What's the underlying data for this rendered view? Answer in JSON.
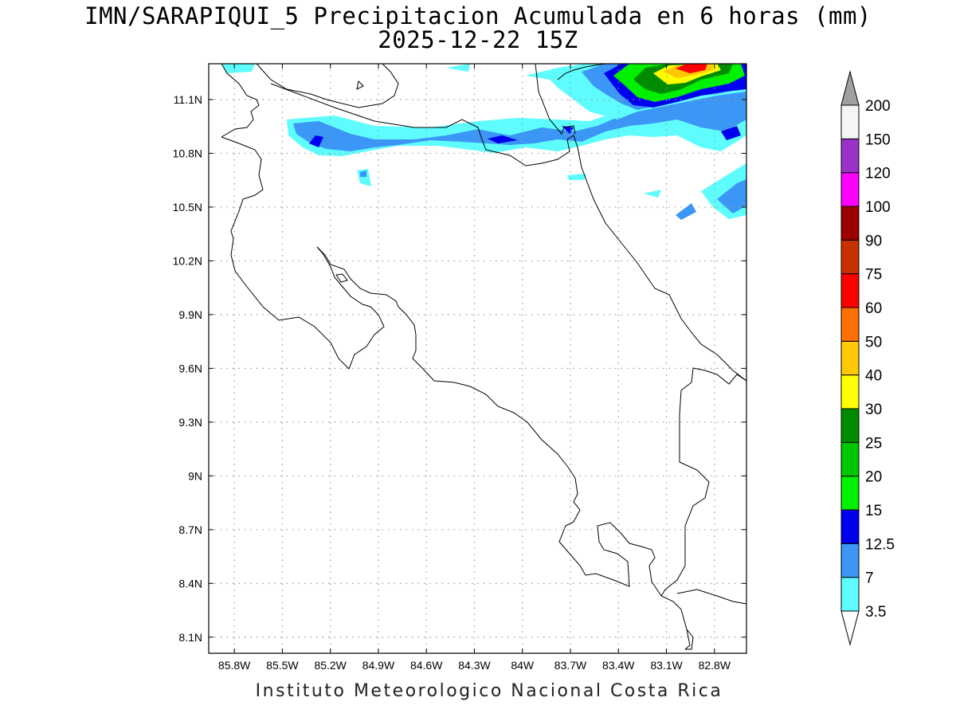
{
  "title": {
    "line1": "IMN/SARAPIQUI_5 Precipitacion Acumulada en 6 horas (mm)",
    "line2": "2025-12-22 15Z"
  },
  "footer": "Instituto Meteorologico Nacional Costa Rica",
  "map": {
    "lat_ticks": [
      {
        "value": 11.1,
        "label": "11.1N"
      },
      {
        "value": 10.8,
        "label": "10.8N"
      },
      {
        "value": 10.5,
        "label": "10.5N"
      },
      {
        "value": 10.2,
        "label": "10.2N"
      },
      {
        "value": 9.9,
        "label": "9.9N"
      },
      {
        "value": 9.6,
        "label": "9.6N"
      },
      {
        "value": 9.3,
        "label": "9.3N"
      },
      {
        "value": 9.0,
        "label": "9N"
      },
      {
        "value": 8.7,
        "label": "8.7N"
      },
      {
        "value": 8.4,
        "label": "8.4N"
      },
      {
        "value": 8.1,
        "label": "8.1N"
      }
    ],
    "lon_ticks": [
      {
        "value": -85.8,
        "label": "85.8W"
      },
      {
        "value": -85.5,
        "label": "85.5W"
      },
      {
        "value": -85.2,
        "label": "85.2W"
      },
      {
        "value": -84.9,
        "label": "84.9W"
      },
      {
        "value": -84.6,
        "label": "84.6W"
      },
      {
        "value": -84.3,
        "label": "84.3W"
      },
      {
        "value": -84.0,
        "label": "84W"
      },
      {
        "value": -83.7,
        "label": "83.7W"
      },
      {
        "value": -83.4,
        "label": "83.4W"
      },
      {
        "value": -83.1,
        "label": "83.1W"
      },
      {
        "value": -82.8,
        "label": "82.8W"
      }
    ],
    "extent": {
      "lon_min": -85.96,
      "lon_max": -82.6,
      "lat_min": 8.01,
      "lat_max": 11.3
    },
    "grid": true
  },
  "colorbar": {
    "labels": [
      "3.5",
      "7",
      "12.5",
      "15",
      "20",
      "25",
      "30",
      "40",
      "50",
      "60",
      "75",
      "90",
      "100",
      "120",
      "150",
      "200"
    ],
    "colors": [
      "#ffffff",
      "#5efcfc",
      "#3c96f5",
      "#0000f0",
      "#00f000",
      "#00c800",
      "#008c00",
      "#ffff00",
      "#ffc800",
      "#ff6e00",
      "#ff0000",
      "#c83200",
      "#9b0000",
      "#ff00ff",
      "#9b32c8",
      "#f5f5f5",
      "#a0a0a0"
    ],
    "outline": "#000000"
  }
}
